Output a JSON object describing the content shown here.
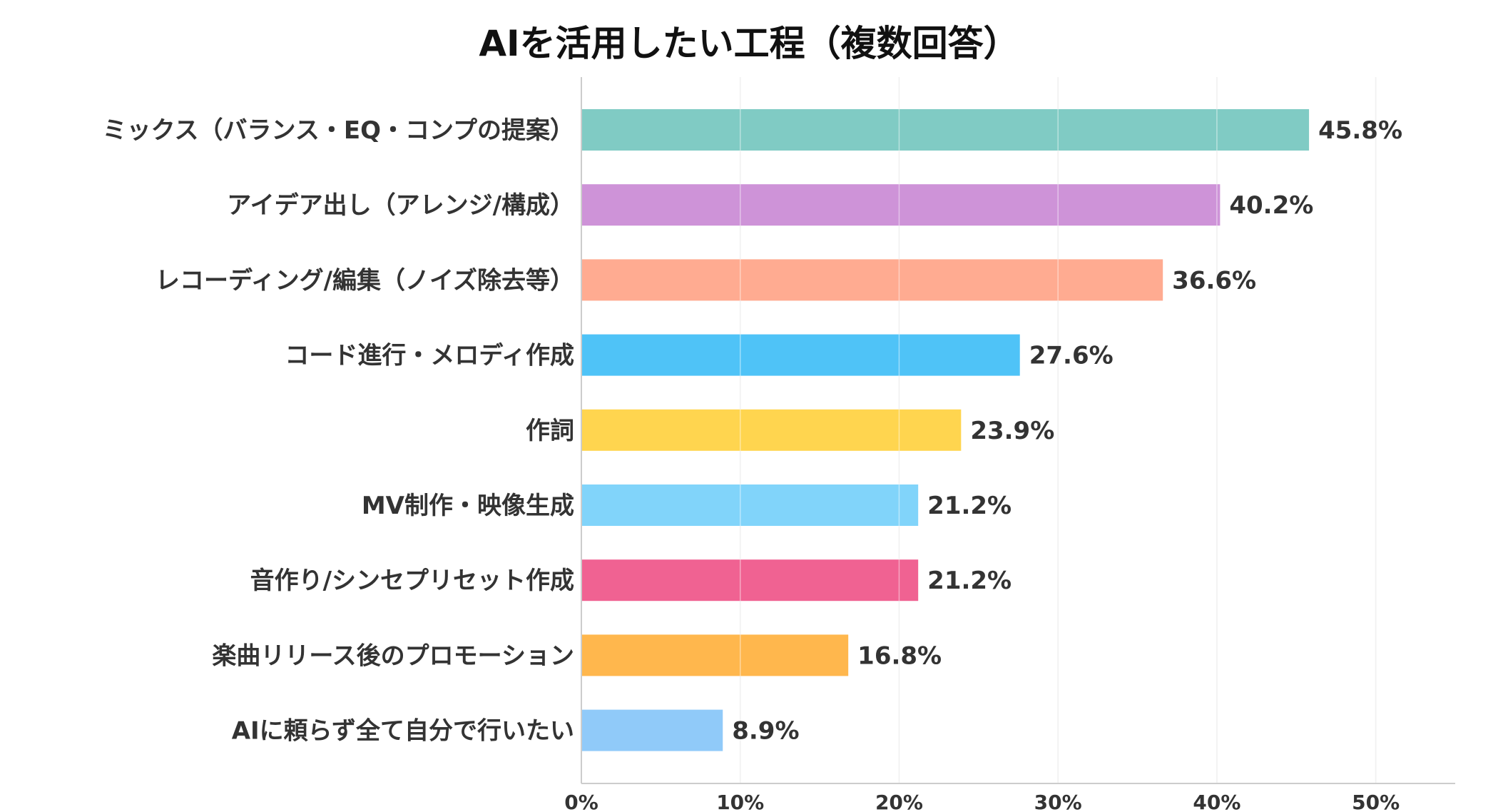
{
  "chart_data": {
    "type": "bar",
    "orientation": "horizontal",
    "title": "AIを活用したい工程（複数回答）",
    "xlabel": "",
    "ylabel": "",
    "categories": [
      "ミックス（バランス・EQ・コンプの提案）",
      "アイデア出し（アレンジ/構成）",
      "レコーディング/編集（ノイズ除去等）",
      "コード進行・メロディ作成",
      "作詞",
      "MV制作・映像生成",
      "音作り/シンセプリセット作成",
      "楽曲リリース後のプロモーション",
      "AIに頼らず全て自分で行いたい"
    ],
    "values": [
      45.8,
      40.2,
      36.6,
      27.6,
      23.9,
      21.2,
      21.2,
      16.8,
      8.9
    ],
    "value_labels": [
      "45.8%",
      "40.2%",
      "36.6%",
      "27.6%",
      "23.9%",
      "21.2%",
      "21.2%",
      "16.8%",
      "8.9%"
    ],
    "colors": [
      "#80CBC4",
      "#CE93D8",
      "#FFAB91",
      "#4FC3F7",
      "#FFD54F",
      "#81D4FA",
      "#F06292",
      "#FFB74D",
      "#90CAF9"
    ],
    "xlim": [
      0,
      55
    ],
    "xticks": [
      0,
      10,
      20,
      30,
      40,
      50
    ],
    "xtick_labels": [
      "0%",
      "10%",
      "20%",
      "30%",
      "40%",
      "50%"
    ],
    "grid": true,
    "legend": "none"
  }
}
